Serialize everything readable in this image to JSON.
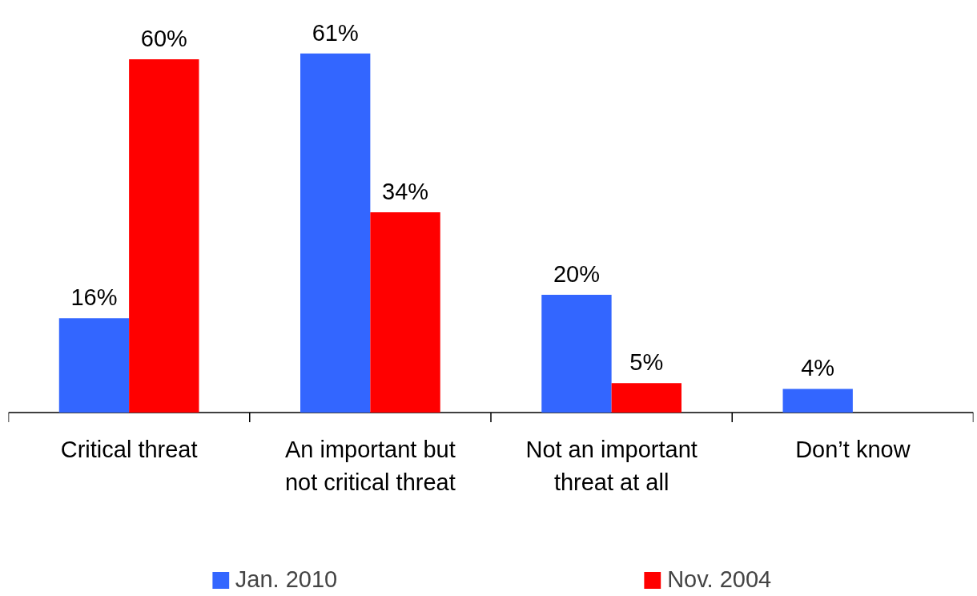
{
  "chart_data": {
    "type": "bar",
    "categories": [
      "Critical threat",
      "An important but not critical threat",
      "Not an important threat at all",
      "Don’t know"
    ],
    "series": [
      {
        "name": "Jan. 2010",
        "color": "#3366ff",
        "values": [
          16,
          61,
          20,
          4
        ],
        "value_labels": [
          "16%",
          "61%",
          "20%",
          "4%"
        ]
      },
      {
        "name": "Nov. 2004",
        "color": "#ff0000",
        "values": [
          60,
          34,
          5,
          null
        ],
        "value_labels": [
          "60%",
          "34%",
          "5%",
          null
        ]
      }
    ],
    "legend": "bottom",
    "grid": false
  }
}
